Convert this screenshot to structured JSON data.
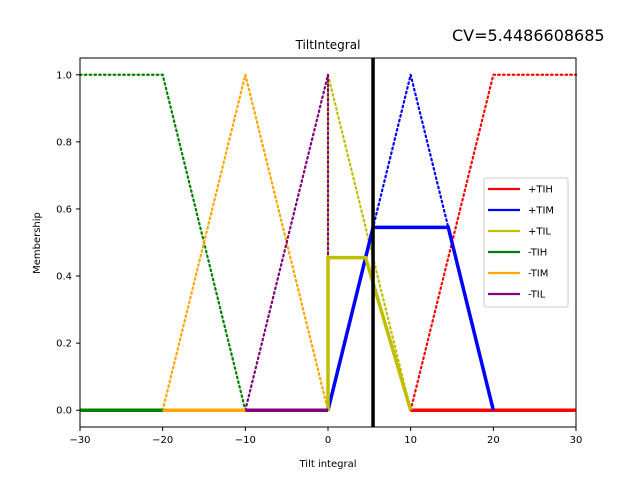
{
  "chart_data": {
    "type": "line",
    "title": "TiltIntegral",
    "annotation": "CV=5.4486608685",
    "xlabel": "Tilt integral",
    "ylabel": "Membership",
    "xlim": [
      -30,
      30
    ],
    "ylim": [
      -0.05,
      1.05
    ],
    "xticks": [
      -30,
      -20,
      -10,
      0,
      10,
      20,
      30
    ],
    "xtick_labels": [
      "−30",
      "−20",
      "−10",
      "0",
      "10",
      "20",
      "30"
    ],
    "yticks": [
      0.0,
      0.2,
      0.4,
      0.6,
      0.8,
      1.0
    ],
    "ytick_labels": [
      "0.0",
      "0.2",
      "0.4",
      "0.6",
      "0.8",
      "1.0"
    ],
    "grid": false,
    "legend_position": "center-right",
    "crisp_value": 5.448660868,
    "membership_functions": [
      {
        "name": "+TIH",
        "color": "#ff0000",
        "x": [
          10,
          20,
          30
        ],
        "y": [
          0,
          1,
          1
        ]
      },
      {
        "name": "+TIM",
        "color": "#0000ff",
        "x": [
          0,
          10,
          20
        ],
        "y": [
          0,
          1,
          0
        ]
      },
      {
        "name": "+TIL",
        "color": "#bfbf00",
        "x": [
          0,
          0,
          10
        ],
        "y": [
          0,
          1,
          0
        ]
      },
      {
        "name": "-TIH",
        "color": "#008000",
        "x": [
          -30,
          -20,
          -10
        ],
        "y": [
          1,
          1,
          0
        ]
      },
      {
        "name": "-TIM",
        "color": "#ffa500",
        "x": [
          -20,
          -10,
          0
        ],
        "y": [
          0,
          1,
          0
        ]
      },
      {
        "name": "-TIL",
        "color": "#800080",
        "x": [
          -10,
          0,
          0
        ],
        "y": [
          0,
          1,
          0
        ]
      }
    ],
    "activations": [
      {
        "name": "+TIH",
        "color": "#ff0000",
        "x": [
          10,
          30
        ],
        "y": [
          0,
          0
        ]
      },
      {
        "name": "+TIM",
        "color": "#0000ff",
        "x": [
          0,
          5.45,
          14.55,
          20
        ],
        "y": [
          0,
          0.545,
          0.545,
          0
        ]
      },
      {
        "name": "+TIL",
        "color": "#bfbf00",
        "x": [
          0,
          0,
          4.55,
          10
        ],
        "y": [
          0,
          0.455,
          0.455,
          0
        ]
      },
      {
        "name": "-TIH",
        "color": "#008000",
        "x": [
          -30,
          -20
        ],
        "y": [
          0,
          0
        ]
      },
      {
        "name": "-TIM",
        "color": "#ffa500",
        "x": [
          -20,
          -10
        ],
        "y": [
          0,
          0
        ]
      },
      {
        "name": "-TIL",
        "color": "#800080",
        "x": [
          -10,
          0
        ],
        "y": [
          0,
          0
        ]
      }
    ],
    "legend": [
      "+TIH",
      "+TIM",
      "+TIL",
      "-TIH",
      "-TIM",
      "-TIL"
    ]
  }
}
